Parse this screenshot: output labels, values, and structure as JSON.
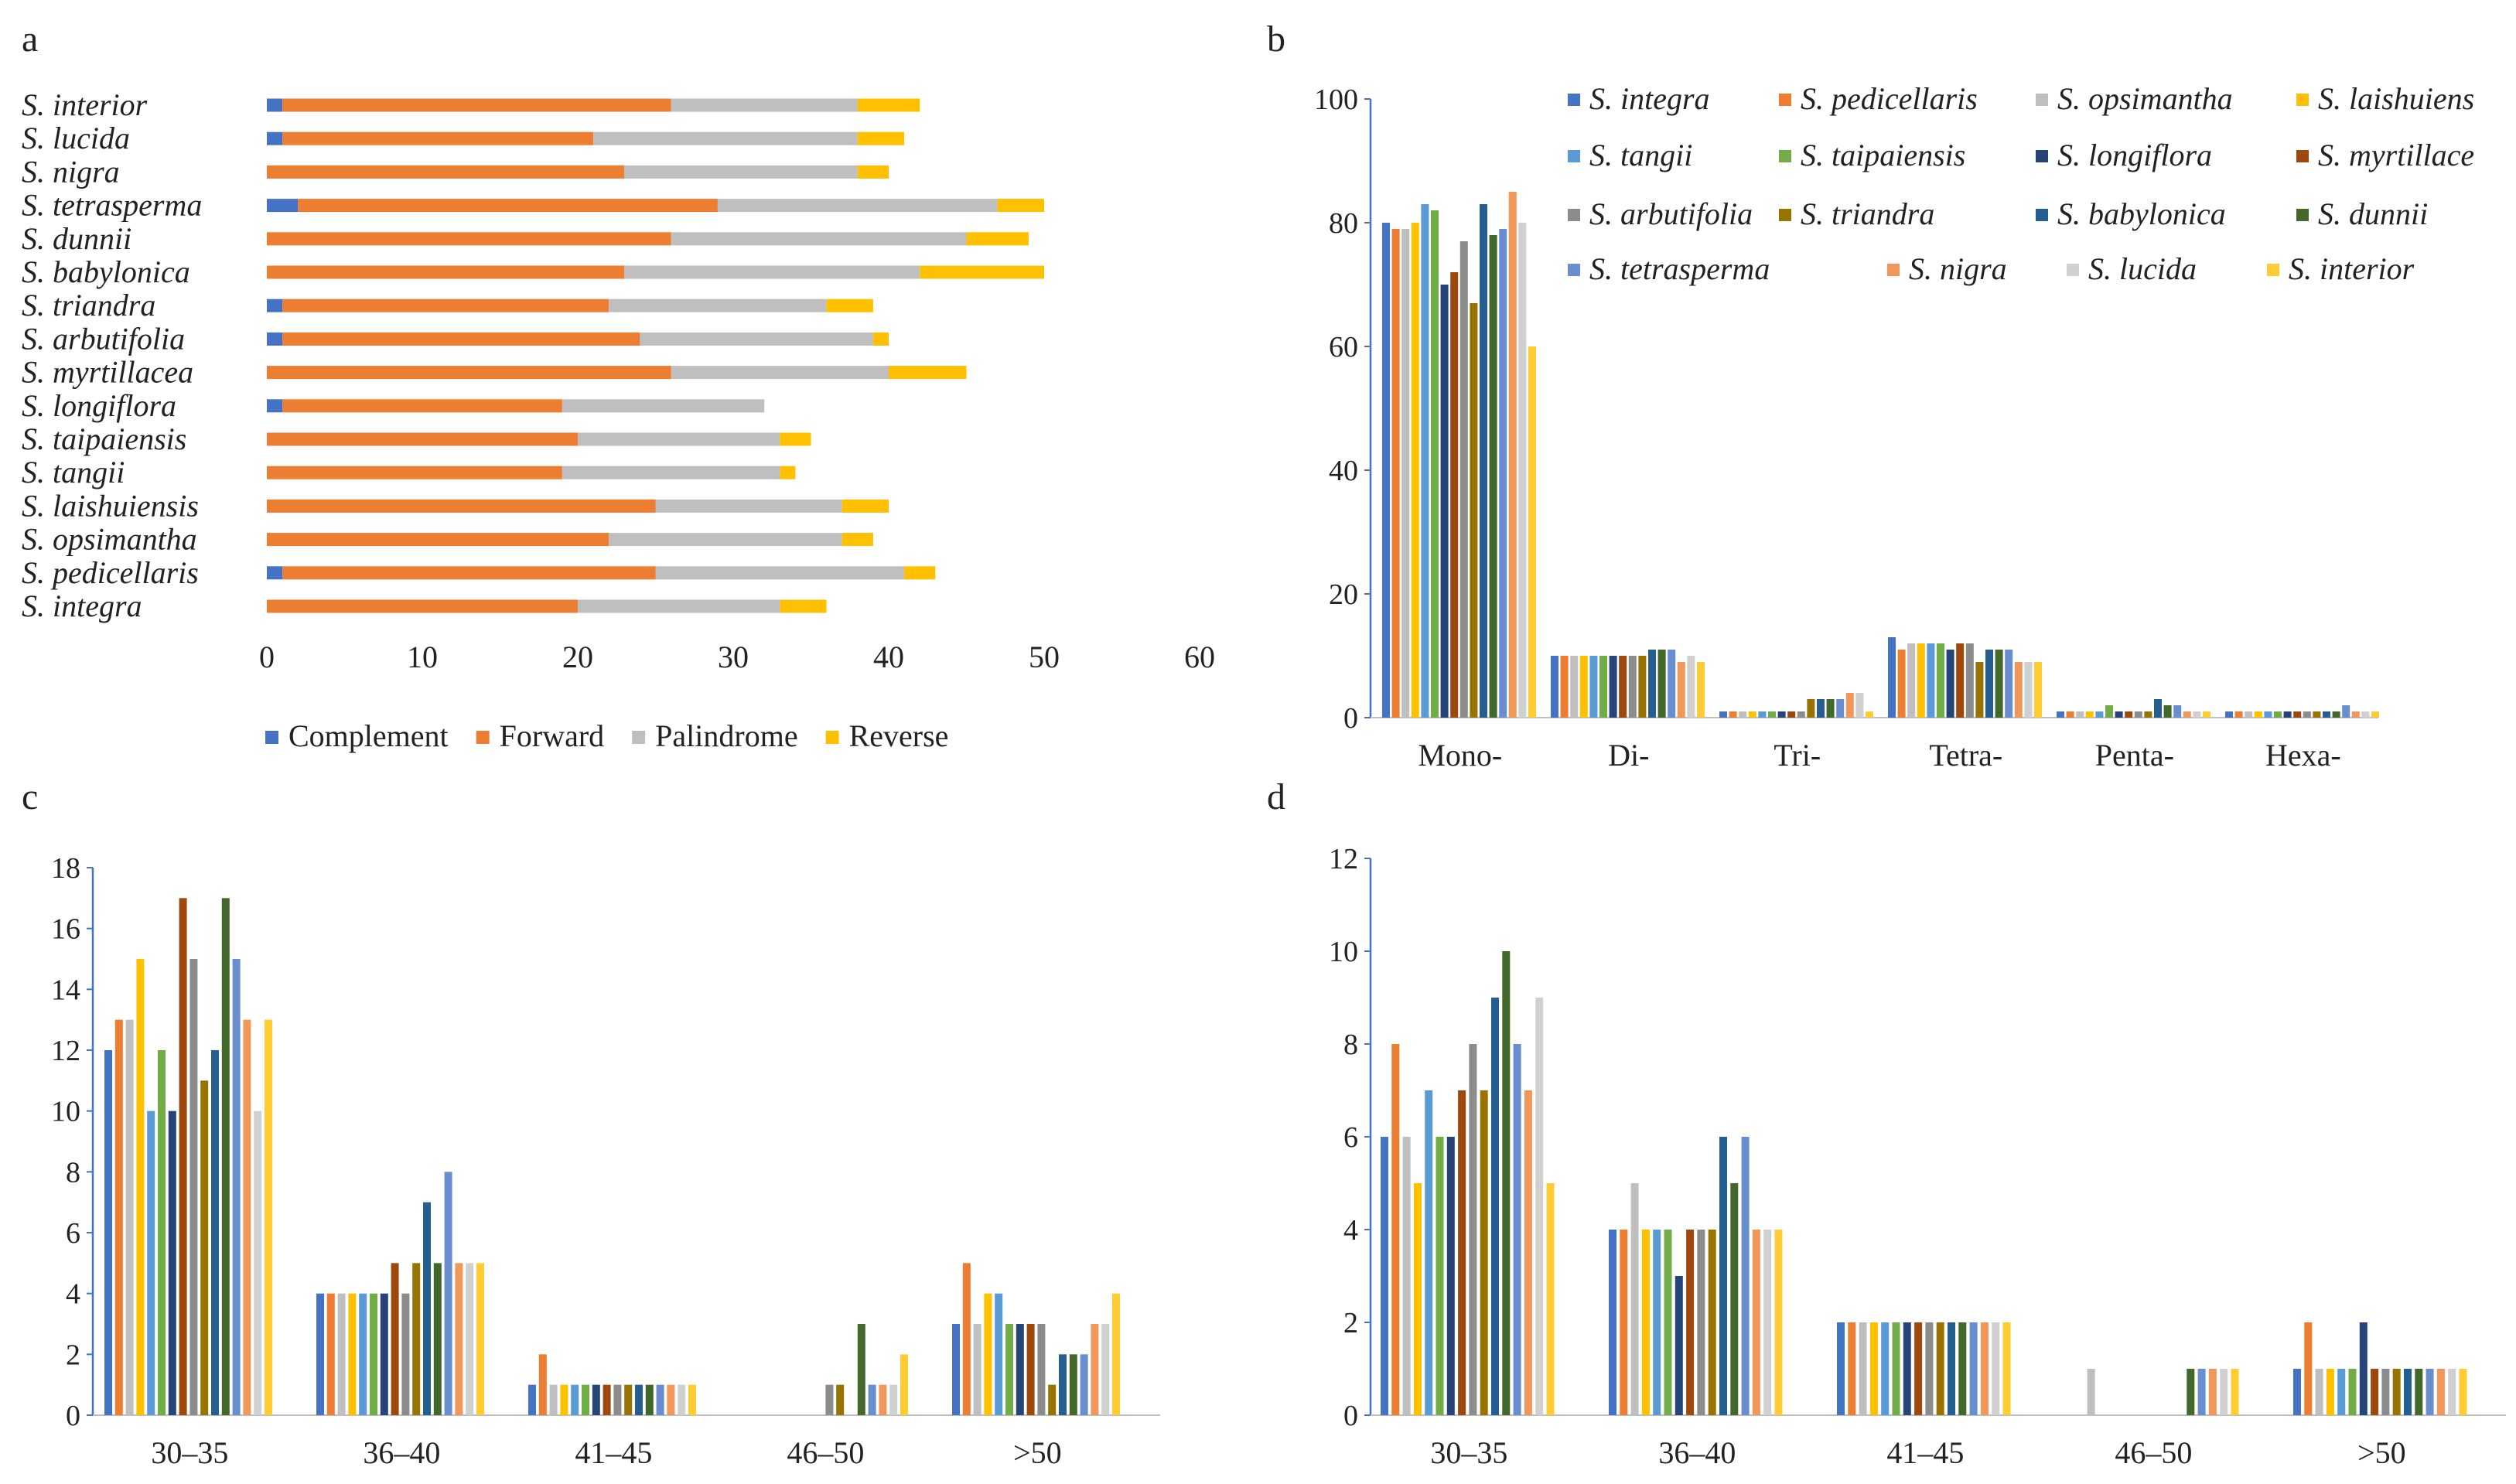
{
  "colors": {
    "S. integra": "#4472C4",
    "S. pedicellaris": "#ED7D31",
    "S. opsimantha": "#BFBFBF",
    "S. laishuiensis": "#FFC000",
    "S. tangii": "#5B9BD5",
    "S. taipaiensis": "#70AD47",
    "S. longiflora": "#264478",
    "S. myrtillacea": "#9E480E",
    "S. arbutifolia": "#8C8C8C",
    "S. triandra": "#997300",
    "S. babylonica": "#255E91",
    "S. dunnii": "#43682B",
    "S. tetrasperma": "#698ED0",
    "S. nigra": "#F1975A",
    "S. lucida": "#D0D0D0",
    "S. interior": "#FFCD33",
    "Complement": "#4472C4",
    "Forward": "#ED7D31",
    "Palindrome": "#BFBFBF",
    "Reverse": "#FFC000",
    "axis": "#4472C4"
  },
  "chart_data": [
    {
      "panel": "a",
      "type": "bar",
      "orientation": "horizontal",
      "stacked": true,
      "categories": [
        "S. interior",
        "S. lucida",
        "S. nigra",
        "S. tetrasperma",
        "S. dunnii",
        "S. babylonica",
        "S. triandra",
        "S. arbutifolia",
        "S. myrtillacea",
        "S. longiflora",
        "S. taipaiensis",
        "S. tangii",
        "S. laishuiensis",
        "S. opsimantha",
        "S. pedicellaris",
        "S. integra"
      ],
      "series": [
        {
          "name": "Complement",
          "values": [
            1,
            1,
            0,
            2,
            0,
            0,
            1,
            1,
            0,
            1,
            0,
            0,
            0,
            0,
            1,
            0
          ]
        },
        {
          "name": "Forward",
          "values": [
            25,
            20,
            23,
            27,
            26,
            23,
            21,
            23,
            26,
            18,
            20,
            19,
            25,
            22,
            24,
            20
          ]
        },
        {
          "name": "Palindrome",
          "values": [
            12,
            17,
            15,
            18,
            19,
            19,
            14,
            15,
            14,
            13,
            13,
            14,
            12,
            15,
            16,
            13
          ]
        },
        {
          "name": "Reverse",
          "values": [
            4,
            3,
            2,
            3,
            4,
            8,
            3,
            1,
            5,
            0,
            2,
            1,
            3,
            2,
            2,
            3
          ]
        }
      ],
      "xticks": [
        "0",
        "10",
        "20",
        "30",
        "40",
        "50",
        "60"
      ],
      "xlim": [
        0,
        60
      ],
      "legend_position": "bottom"
    },
    {
      "panel": "b",
      "type": "bar",
      "categories": [
        "Mono-",
        "Di-",
        "Tri-",
        "Tetra-",
        "Penta-",
        "Hexa-"
      ],
      "series": [
        {
          "name": "S. integra",
          "values": [
            80,
            10,
            1,
            13,
            1,
            1
          ]
        },
        {
          "name": "S. pedicellaris",
          "values": [
            79,
            10,
            1,
            11,
            1,
            1
          ]
        },
        {
          "name": "S. opsimantha",
          "values": [
            79,
            10,
            1,
            12,
            1,
            1
          ]
        },
        {
          "name": "S. laishuiens",
          "values": [
            80,
            10,
            1,
            12,
            1,
            1
          ]
        },
        {
          "name": "S. tangii",
          "values": [
            83,
            10,
            1,
            12,
            1,
            1
          ]
        },
        {
          "name": "S. taipaiensis",
          "values": [
            82,
            10,
            1,
            12,
            2,
            1
          ]
        },
        {
          "name": "S. longiflora",
          "values": [
            70,
            10,
            1,
            11,
            1,
            1
          ]
        },
        {
          "name": "S. myrtillace",
          "values": [
            72,
            10,
            1,
            12,
            1,
            1
          ]
        },
        {
          "name": "S. arbutifolia",
          "values": [
            77,
            10,
            1,
            12,
            1,
            1
          ]
        },
        {
          "name": "S. triandra",
          "values": [
            67,
            10,
            3,
            9,
            1,
            1
          ]
        },
        {
          "name": "S. babylonica",
          "values": [
            83,
            11,
            3,
            11,
            3,
            1
          ]
        },
        {
          "name": "S. dunnii",
          "values": [
            78,
            11,
            3,
            11,
            2,
            1
          ]
        },
        {
          "name": "S. tetrasperma",
          "values": [
            79,
            11,
            3,
            11,
            2,
            2
          ]
        },
        {
          "name": "S. nigra",
          "values": [
            85,
            9,
            4,
            9,
            1,
            1
          ]
        },
        {
          "name": "S. lucida",
          "values": [
            80,
            10,
            4,
            9,
            1,
            1
          ]
        },
        {
          "name": "S. interior",
          "values": [
            60,
            9,
            1,
            9,
            1,
            1
          ]
        }
      ],
      "yticks": [
        "0",
        "20",
        "40",
        "60",
        "80",
        "100"
      ],
      "ylim": [
        0,
        100
      ],
      "legend_position": "top-right"
    },
    {
      "panel": "c",
      "type": "bar",
      "categories": [
        "30–35",
        "36–40",
        "41–45",
        "46–50",
        ">50"
      ],
      "series_order": [
        "S. integra",
        "S. pedicellaris",
        "S. opsimantha",
        "S. laishuiensis",
        "S. tangii",
        "S. taipaiensis",
        "S. longiflora",
        "S. myrtillacea",
        "S. arbutifolia",
        "S. triandra",
        "S. babylonica",
        "S. dunnii",
        "S. tetrasperma",
        "S. nigra",
        "S. lucida",
        "S. interior"
      ],
      "values": [
        [
          12,
          13,
          13,
          15,
          10,
          12,
          10,
          17,
          15,
          11,
          12,
          17,
          15,
          13,
          10,
          13
        ],
        [
          4,
          4,
          4,
          4,
          4,
          4,
          4,
          5,
          4,
          5,
          7,
          5,
          8,
          5,
          5,
          5
        ],
        [
          1,
          2,
          1,
          1,
          1,
          1,
          1,
          1,
          1,
          1,
          1,
          1,
          1,
          1,
          1,
          1
        ],
        [
          0,
          0,
          0,
          0,
          0,
          0,
          0,
          0,
          1,
          1,
          0,
          3,
          1,
          1,
          1,
          2
        ],
        [
          3,
          5,
          3,
          4,
          4,
          3,
          3,
          3,
          3,
          1,
          2,
          2,
          2,
          3,
          3,
          4
        ]
      ],
      "yticks": [
        "0",
        "2",
        "4",
        "6",
        "8",
        "10",
        "12",
        "14",
        "16",
        "18"
      ],
      "ylim": [
        0,
        18
      ]
    },
    {
      "panel": "d",
      "type": "bar",
      "categories": [
        "30–35",
        "36–40",
        "41–45",
        "46–50",
        ">50"
      ],
      "series_order": [
        "S. integra",
        "S. pedicellaris",
        "S. opsimantha",
        "S. laishuiensis",
        "S. tangii",
        "S. taipaiensis",
        "S. longiflora",
        "S. myrtillacea",
        "S. arbutifolia",
        "S. triandra",
        "S. babylonica",
        "S. dunnii",
        "S. tetrasperma",
        "S. nigra",
        "S. lucida",
        "S. interior"
      ],
      "values": [
        [
          6,
          8,
          6,
          5,
          7,
          6,
          6,
          7,
          8,
          7,
          9,
          10,
          8,
          7,
          9,
          5
        ],
        [
          4,
          4,
          5,
          4,
          4,
          4,
          3,
          4,
          4,
          4,
          6,
          5,
          6,
          4,
          4,
          4
        ],
        [
          2,
          2,
          2,
          2,
          2,
          2,
          2,
          2,
          2,
          2,
          2,
          2,
          2,
          2,
          2,
          2
        ],
        [
          0,
          0,
          1,
          0,
          0,
          0,
          0,
          0,
          0,
          0,
          0,
          1,
          1,
          1,
          1,
          1
        ],
        [
          1,
          2,
          1,
          1,
          1,
          1,
          2,
          1,
          1,
          1,
          1,
          1,
          1,
          1,
          1,
          1
        ]
      ],
      "yticks": [
        "0",
        "2",
        "4",
        "6",
        "8",
        "10",
        "12"
      ],
      "ylim": [
        0,
        12
      ]
    }
  ]
}
